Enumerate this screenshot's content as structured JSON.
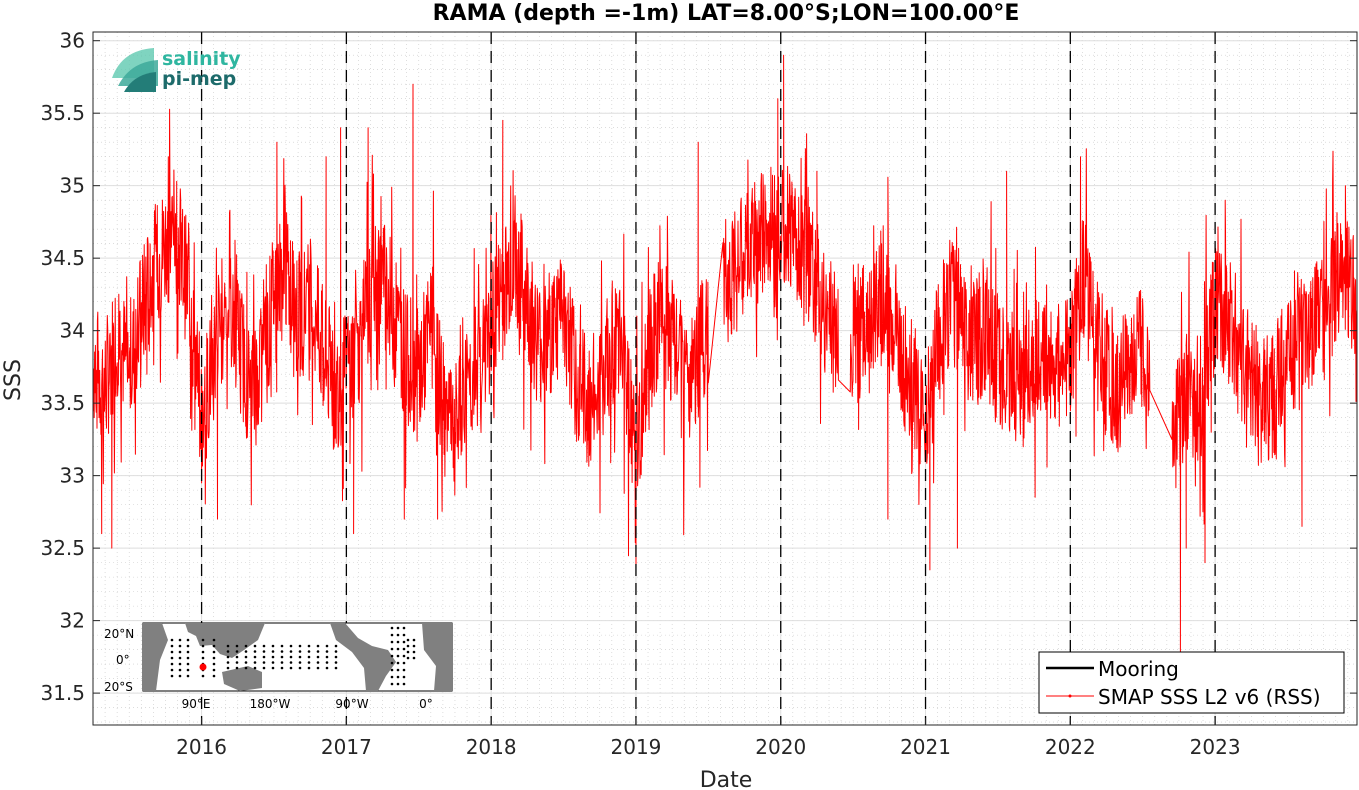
{
  "chart_data": {
    "type": "line",
    "title": "RAMA (depth =-1m) LAT=8.00°S;LON=100.00°E",
    "xlabel": "Date",
    "ylabel": "SSS",
    "xlim": [
      2015.25,
      2023.98
    ],
    "ylim": [
      31.28,
      36.06
    ],
    "x_ticks": [
      2016,
      2017,
      2018,
      2019,
      2020,
      2021,
      2022,
      2023
    ],
    "x_tick_labels": [
      "2016",
      "2017",
      "2018",
      "2019",
      "2020",
      "2021",
      "2022",
      "2023"
    ],
    "y_ticks": [
      31.5,
      32,
      32.5,
      33,
      33.5,
      34,
      34.5,
      35,
      35.5,
      36
    ],
    "y_tick_labels": [
      "31.5",
      "32",
      "32.5",
      "33",
      "33.5",
      "34",
      "34.5",
      "35",
      "35.5",
      "36"
    ],
    "year_lines": [
      2016,
      2017,
      2018,
      2019,
      2020,
      2021,
      2022,
      2023
    ],
    "grid": true,
    "legend_position": "bottom-right",
    "series": [
      {
        "name": "Mooring",
        "color": "#000000",
        "x": [],
        "y": []
      },
      {
        "name": "SMAP SSS L2 v6 (RSS)",
        "color": "#ff0000",
        "x": [
          2015.25,
          2015.33,
          2015.42,
          2015.5,
          2015.58,
          2015.67,
          2015.75,
          2015.83,
          2015.92,
          2016.0,
          2016.08,
          2016.17,
          2016.25,
          2016.33,
          2016.42,
          2016.5,
          2016.58,
          2016.67,
          2016.75,
          2016.83,
          2016.92,
          2017.0,
          2017.08,
          2017.17,
          2017.25,
          2017.33,
          2017.42,
          2017.5,
          2017.58,
          2017.67,
          2017.75,
          2017.83,
          2017.92,
          2018.0,
          2018.08,
          2018.17,
          2018.25,
          2018.33,
          2018.42,
          2018.5,
          2018.58,
          2018.67,
          2018.75,
          2018.83,
          2018.92,
          2019.0,
          2019.08,
          2019.17,
          2019.25,
          2019.33,
          2019.42,
          2019.5,
          2019.58,
          2019.67,
          2019.75,
          2019.83,
          2019.92,
          2020.0,
          2020.08,
          2020.17,
          2020.25,
          2020.33,
          2020.42,
          2020.5,
          2020.58,
          2020.67,
          2020.75,
          2020.83,
          2020.92,
          2021.0,
          2021.08,
          2021.17,
          2021.25,
          2021.33,
          2021.42,
          2021.5,
          2021.58,
          2021.67,
          2021.75,
          2021.83,
          2021.92,
          2022.0,
          2022.08,
          2022.17,
          2022.25,
          2022.33,
          2022.42,
          2022.5,
          2022.58,
          2022.67,
          2022.75,
          2022.83,
          2022.92,
          2023.0,
          2023.08,
          2023.17,
          2023.25,
          2023.33,
          2023.42,
          2023.5,
          2023.58,
          2023.67,
          2023.75,
          2023.83,
          2023.92,
          2023.98
        ],
        "y": [
          33.8,
          33.6,
          34.0,
          33.7,
          34.1,
          34.4,
          34.6,
          34.7,
          34.2,
          33.4,
          33.8,
          34.2,
          34.0,
          33.6,
          33.7,
          34.3,
          34.4,
          34.1,
          34.2,
          33.9,
          33.6,
          33.7,
          33.9,
          34.2,
          34.4,
          34.1,
          33.8,
          33.7,
          34.0,
          33.5,
          33.3,
          33.6,
          33.8,
          34.0,
          34.3,
          34.5,
          34.2,
          33.9,
          34.0,
          34.1,
          33.7,
          33.5,
          33.6,
          33.9,
          33.8,
          33.1,
          33.8,
          34.1,
          33.9,
          33.6,
          33.8,
          34.0,
          34.3,
          34.4,
          34.5,
          34.6,
          34.7,
          34.8,
          34.7,
          34.5,
          34.3,
          34.1,
          33.8,
          33.9,
          34.0,
          34.2,
          34.1,
          33.8,
          33.6,
          33.3,
          33.9,
          34.2,
          34.1,
          33.9,
          34.0,
          33.8,
          33.7,
          33.6,
          33.8,
          33.9,
          33.7,
          33.8,
          34.4,
          34.0,
          33.7,
          33.6,
          33.8,
          33.9,
          33.7,
          33.6,
          33.4,
          33.5,
          33.6,
          34.2,
          34.1,
          33.9,
          33.7,
          33.5,
          33.6,
          33.8,
          33.9,
          34.0,
          34.1,
          34.3,
          34.4,
          34.2
        ],
        "spikes": [
          {
            "x": 2015.38,
            "y": 32.5
          },
          {
            "x": 2015.31,
            "y": 32.6
          },
          {
            "x": 2016.0,
            "y": 32.95
          },
          {
            "x": 2015.77,
            "y": 35.2
          },
          {
            "x": 2016.11,
            "y": 32.7
          },
          {
            "x": 2016.52,
            "y": 35.3
          },
          {
            "x": 2016.86,
            "y": 35.2
          },
          {
            "x": 2016.96,
            "y": 35.4
          },
          {
            "x": 2017.05,
            "y": 32.6
          },
          {
            "x": 2017.15,
            "y": 35.4
          },
          {
            "x": 2017.46,
            "y": 35.7
          },
          {
            "x": 2017.4,
            "y": 32.7
          },
          {
            "x": 2017.63,
            "y": 32.7
          },
          {
            "x": 2018.08,
            "y": 35.45
          },
          {
            "x": 2019.0,
            "y": 32.35
          },
          {
            "x": 2019.43,
            "y": 35.3
          },
          {
            "x": 2020.02,
            "y": 35.9
          },
          {
            "x": 2019.98,
            "y": 35.6
          },
          {
            "x": 2020.25,
            "y": 35.1
          },
          {
            "x": 2020.74,
            "y": 32.7
          },
          {
            "x": 2021.03,
            "y": 32.35
          },
          {
            "x": 2021.22,
            "y": 32.5
          },
          {
            "x": 2021.56,
            "y": 35.1
          },
          {
            "x": 2022.07,
            "y": 35.2
          },
          {
            "x": 2022.76,
            "y": 31.78
          },
          {
            "x": 2022.8,
            "y": 32.5
          },
          {
            "x": 2022.93,
            "y": 32.4
          },
          {
            "x": 2023.07,
            "y": 34.9
          },
          {
            "x": 2023.6,
            "y": 32.65
          },
          {
            "x": 2023.9,
            "y": 35.0
          }
        ]
      }
    ]
  },
  "inset_map": {
    "lat_labels": [
      "20°N",
      "0°",
      "20°S"
    ],
    "lon_labels": [
      "90°E",
      "180°W",
      "90°W",
      "0°"
    ],
    "marker_color": "#ff0000"
  },
  "logo": {
    "line1": "salinity",
    "line2": "pi-mep"
  }
}
